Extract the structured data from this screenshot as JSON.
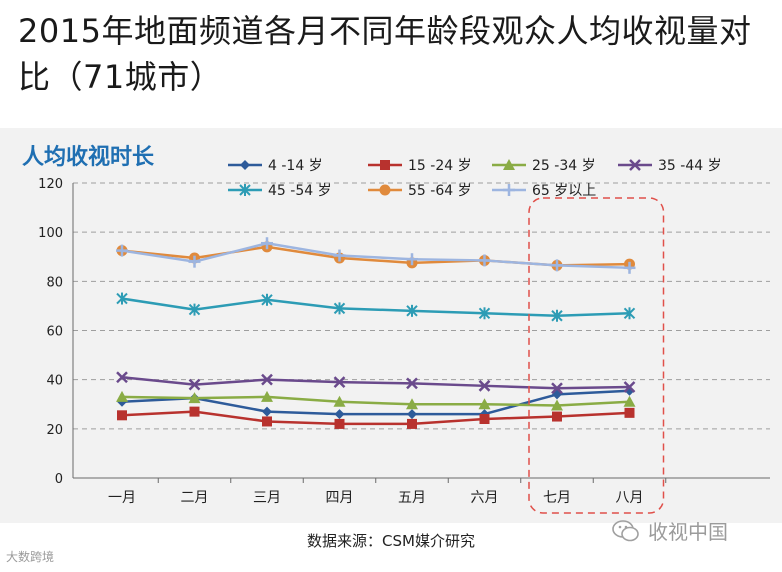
{
  "slide": {
    "title": "2015年地面频道各月不同年龄段观众人均收视量对比（71城市）",
    "source": "数据来源：CSM媒介研究",
    "watermark_left": "大数跨境",
    "watermark_right": "收视中国"
  },
  "colors": {
    "panel_bg": "#f2f2f2",
    "grid": "#9e9e9e",
    "highlight_box": "#e0504a",
    "chart_title": "#1f6fb2"
  },
  "chart_data": {
    "type": "line",
    "title": "人均收视时长",
    "xlabel": "",
    "ylabel": "",
    "categories": [
      "一月",
      "二月",
      "三月",
      "四月",
      "五月",
      "六月",
      "七月",
      "八月"
    ],
    "ylim": [
      0,
      120
    ],
    "yticks": [
      0,
      20,
      40,
      60,
      80,
      100,
      120
    ],
    "grid": true,
    "legend": "top",
    "highlight_categories": [
      "七月",
      "八月"
    ],
    "series": [
      {
        "name": "4 -14 岁",
        "color": "#2e5b9a",
        "marker": "diamond",
        "values": [
          31,
          32.5,
          27,
          26,
          26,
          26,
          34,
          35.5
        ]
      },
      {
        "name": "15 -24 岁",
        "color": "#b8322e",
        "marker": "square",
        "values": [
          25.5,
          27,
          23,
          22,
          22,
          24,
          25,
          26.5
        ]
      },
      {
        "name": "25 -34 岁",
        "color": "#8aac45",
        "marker": "triangle",
        "values": [
          33,
          32.5,
          33,
          31,
          30,
          30,
          29.5,
          31
        ]
      },
      {
        "name": "35 -44 岁",
        "color": "#6a4a8c",
        "marker": "x",
        "values": [
          41,
          38,
          40,
          39,
          38.5,
          37.5,
          36.5,
          37
        ]
      },
      {
        "name": "45 -54 岁",
        "color": "#2d9cb5",
        "marker": "star",
        "values": [
          73,
          68.5,
          72.5,
          69,
          68,
          67,
          66,
          67
        ]
      },
      {
        "name": "55 -64 岁",
        "color": "#e08a3c",
        "marker": "circle",
        "values": [
          92.5,
          89.5,
          94,
          89.5,
          87.5,
          88.5,
          86.5,
          87
        ]
      },
      {
        "name": "65 岁以上",
        "color": "#9db5e0",
        "marker": "plus",
        "values": [
          92.5,
          88,
          95.5,
          90.5,
          89,
          88.5,
          86.5,
          85.5
        ]
      }
    ]
  }
}
